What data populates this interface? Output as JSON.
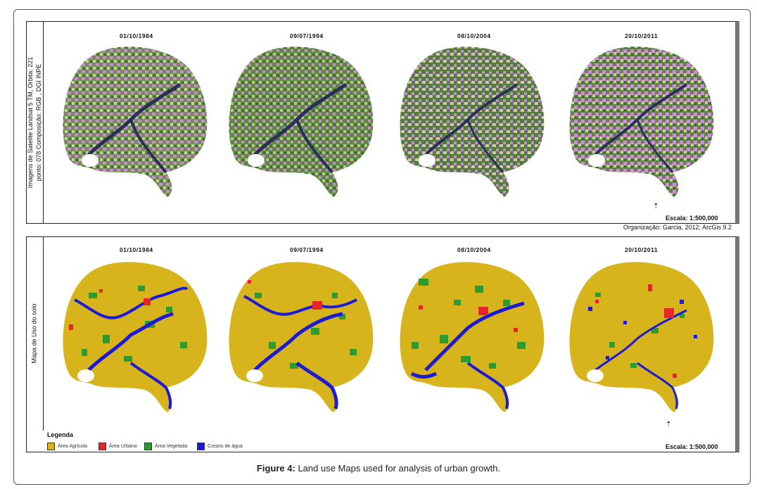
{
  "top_panel": {
    "side_label_line1": "Imagens de Satelite Landsat 5 TM, Orbita: 221",
    "side_label_line2": "ponto: 078 Composição: RGB , DGI INPE",
    "dates": [
      "01/10/1984",
      "09/07/1994",
      "08/10/2004",
      "20/10/2011"
    ],
    "scale": "Escala: 1:500,000",
    "organization": "Organização: Garcia, 2012; ArcGis 9.2"
  },
  "bottom_panel": {
    "side_label": "Mapa de Uso do solo",
    "dates": [
      "01/10/1984",
      "09/07/1994",
      "08/10/2004",
      "20/10/2011"
    ],
    "scale": "Escala: 1:500,000",
    "legend_title": "Legenda",
    "legend": [
      {
        "label": "Área Agrícola",
        "color": "#d8b41c"
      },
      {
        "label": "Área Urbana",
        "color": "#e8262a"
      },
      {
        "label": "Área Vegetada",
        "color": "#2e9b2e"
      },
      {
        "label": "Corpos de água",
        "color": "#1a1ad8"
      }
    ]
  },
  "caption": {
    "label": "Figure 4:",
    "text": " Land use Maps used for analysis of urban growth."
  },
  "colors": {
    "satellite_purple": "#c98ad6",
    "satellite_green": "#5c8a3c",
    "satellite_dark": "#2a2f5a"
  }
}
